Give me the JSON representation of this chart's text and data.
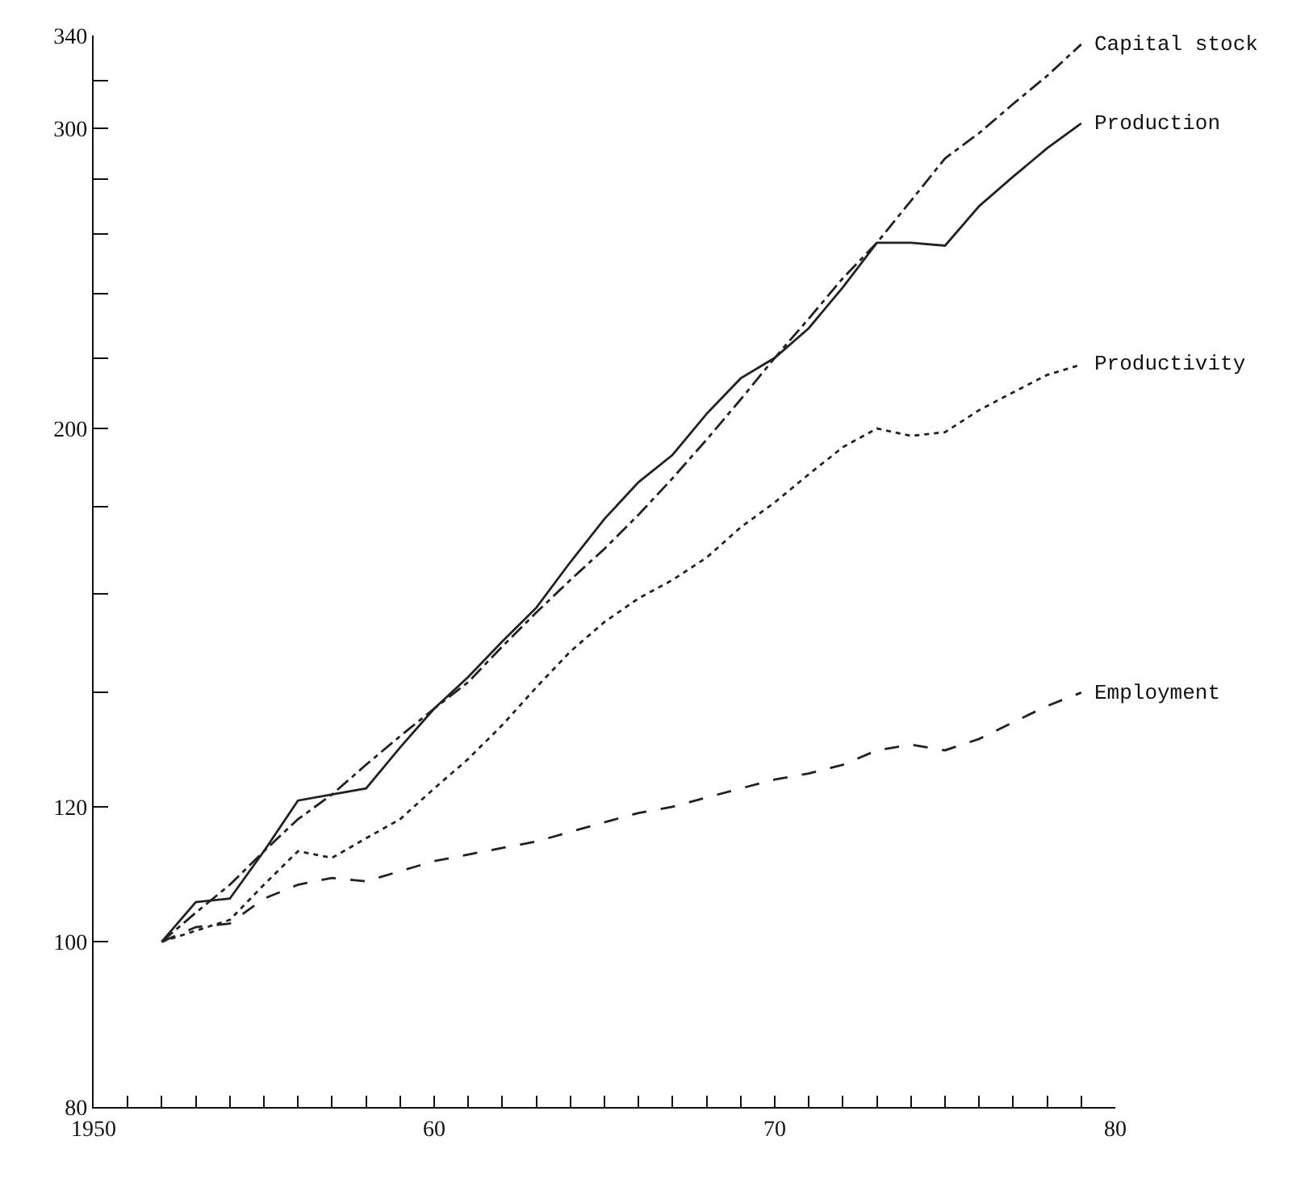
{
  "chart_data": {
    "type": "line",
    "log": "y",
    "grid": false,
    "legend": false,
    "x": [
      1952,
      1953,
      1954,
      1955,
      1956,
      1957,
      1958,
      1959,
      1960,
      1961,
      1962,
      1963,
      1964,
      1965,
      1966,
      1967,
      1968,
      1969,
      1970,
      1971,
      1972,
      1973,
      1974,
      1975,
      1976,
      1977,
      1978,
      1979
    ],
    "series": [
      {
        "name": "Capital stock",
        "color": "#222222",
        "line_style": "dashdot",
        "values": [
          100,
          104,
          108,
          113,
          118,
          122,
          127,
          132,
          137,
          142,
          149,
          156,
          163,
          170,
          178,
          187,
          197,
          208,
          220,
          232,
          245,
          257,
          272,
          288,
          298,
          310,
          322,
          336
        ]
      },
      {
        "name": "Production",
        "color": "#222222",
        "line_style": "solid",
        "values": [
          100,
          105.5,
          106,
          113,
          121,
          122,
          123,
          130,
          137,
          143,
          150,
          157,
          167,
          177,
          186,
          193,
          204,
          214,
          220,
          229,
          242,
          257,
          257,
          256,
          270,
          281,
          292,
          302
        ]
      },
      {
        "name": "Productivity",
        "color": "#222222",
        "line_style": "dotted",
        "values": [
          100,
          101.5,
          103,
          108,
          113,
          112,
          115,
          118,
          123,
          128,
          134,
          141,
          148,
          154,
          159,
          163,
          168,
          175,
          181,
          188,
          195,
          200,
          198,
          199,
          205,
          210,
          215,
          218
        ]
      },
      {
        "name": "Employment",
        "color": "#222222",
        "line_style": "dashed",
        "values": [
          100,
          102,
          102.5,
          106,
          108,
          109,
          108.5,
          110,
          111.5,
          112.5,
          113.5,
          114.5,
          116,
          117.5,
          119,
          120,
          121.5,
          123,
          124.5,
          125.5,
          127,
          129.5,
          130.5,
          129.5,
          131.5,
          134.5,
          137.5,
          140
        ]
      }
    ],
    "xlim": [
      1950,
      1980
    ],
    "xticks": [
      1950,
      {
        "value": 1951,
        "label": null
      },
      {
        "value": 1952,
        "label": null
      },
      {
        "value": 1953,
        "label": null
      },
      {
        "value": 1954,
        "label": null
      },
      {
        "value": 1955,
        "label": null
      },
      {
        "value": 1956,
        "label": null
      },
      {
        "value": 1957,
        "label": null
      },
      {
        "value": 1958,
        "label": null
      },
      {
        "value": 1959,
        "label": null
      },
      {
        "value": 1960,
        "label": "60"
      },
      {
        "value": 1961,
        "label": null
      },
      {
        "value": 1962,
        "label": null
      },
      {
        "value": 1963,
        "label": null
      },
      {
        "value": 1964,
        "label": null
      },
      {
        "value": 1965,
        "label": null
      },
      {
        "value": 1966,
        "label": null
      },
      {
        "value": 1967,
        "label": null
      },
      {
        "value": 1968,
        "label": null
      },
      {
        "value": 1969,
        "label": null
      },
      {
        "value": 1970,
        "label": "70"
      },
      {
        "value": 1971,
        "label": null
      },
      {
        "value": 1972,
        "label": null
      },
      {
        "value": 1973,
        "label": null
      },
      {
        "value": 1974,
        "label": null
      },
      {
        "value": 1975,
        "label": null
      },
      {
        "value": 1976,
        "label": null
      },
      {
        "value": 1977,
        "label": null
      },
      {
        "value": 1978,
        "label": null
      },
      {
        "value": 1979,
        "label": null
      },
      {
        "value": 1980,
        "label": "80"
      }
    ],
    "ylim": [
      80,
      340
    ],
    "yticks": [
      80,
      100,
      120,
      {
        "value": 140,
        "label": null
      },
      {
        "value": 160,
        "label": null
      },
      {
        "value": 180,
        "label": null
      },
      200,
      {
        "value": 220,
        "label": null
      },
      {
        "value": 240,
        "label": null
      },
      {
        "value": 260,
        "label": null
      },
      {
        "value": 280,
        "label": null
      },
      300,
      {
        "value": 320,
        "label": null
      },
      340
    ]
  }
}
